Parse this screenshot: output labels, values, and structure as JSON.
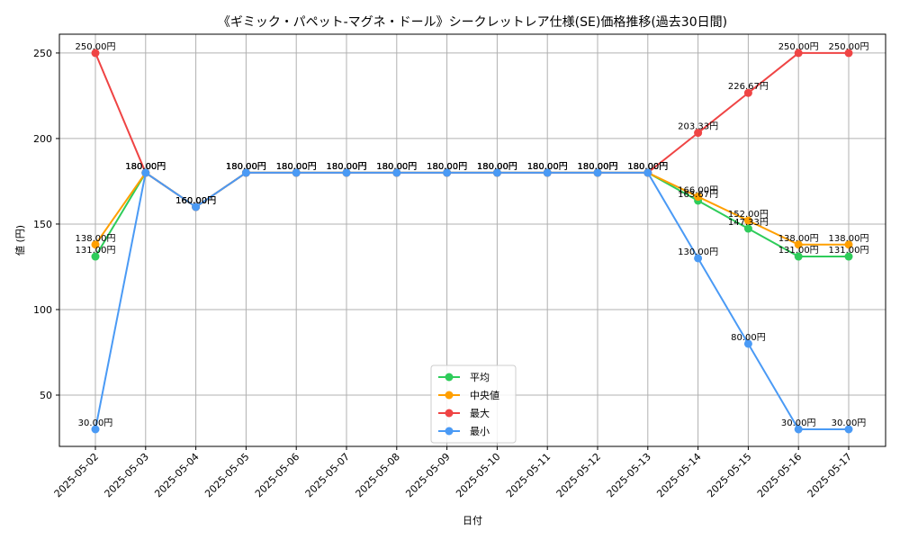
{
  "chart_data": {
    "type": "line",
    "title": "《ギミック・パペット-マグネ・ドール》シークレットレア仕様(SE)価格推移(過去30日間)",
    "xlabel": "日付",
    "ylabel": "値 (円)",
    "ylim": [
      20,
      261
    ],
    "yticks": [
      50,
      100,
      150,
      200,
      250
    ],
    "grid": true,
    "legend_position": "bottom-center",
    "value_suffix": "円",
    "categories": [
      "2025-05-02",
      "2025-05-03",
      "2025-05-04",
      "2025-05-05",
      "2025-05-06",
      "2025-05-07",
      "2025-05-08",
      "2025-05-09",
      "2025-05-10",
      "2025-05-11",
      "2025-05-12",
      "2025-05-13",
      "2025-05-14",
      "2025-05-15",
      "2025-05-16",
      "2025-05-17"
    ],
    "series": [
      {
        "name": "平均",
        "color": "#2ecc5a",
        "values": [
          131.0,
          180.0,
          160.0,
          180.0,
          180.0,
          180.0,
          180.0,
          180.0,
          180.0,
          180.0,
          180.0,
          180.0,
          163.67,
          147.33,
          131.0,
          131.0
        ],
        "labels": [
          "131.00円",
          "180.00円",
          "160.00円",
          "180.00円",
          "180.00円",
          "180.00円",
          "180.00円",
          "180.00円",
          "180.00円",
          "180.00円",
          "180.00円",
          "180.00円",
          "163.67円",
          "147.33円",
          "131.00円",
          "131.00円"
        ]
      },
      {
        "name": "中央値",
        "color": "#ff9f00",
        "values": [
          138.0,
          180.0,
          160.0,
          180.0,
          180.0,
          180.0,
          180.0,
          180.0,
          180.0,
          180.0,
          180.0,
          180.0,
          166.0,
          152.0,
          138.0,
          138.0
        ],
        "labels": [
          "138.00円",
          "180.00円",
          "160.00円",
          "180.00円",
          "180.00円",
          "180.00円",
          "180.00円",
          "180.00円",
          "180.00円",
          "180.00円",
          "180.00円",
          "180.00円",
          "166.00円",
          "152.00円",
          "138.00円",
          "138.00円"
        ]
      },
      {
        "name": "最大",
        "color": "#ef4444",
        "values": [
          250.0,
          180.0,
          160.0,
          180.0,
          180.0,
          180.0,
          180.0,
          180.0,
          180.0,
          180.0,
          180.0,
          180.0,
          203.33,
          226.67,
          250.0,
          250.0
        ],
        "labels": [
          "250.00円",
          "180.00円",
          "160.00円",
          "180.00円",
          "180.00円",
          "180.00円",
          "180.00円",
          "180.00円",
          "180.00円",
          "180.00円",
          "180.00円",
          "180.00円",
          "203.33円",
          "226.67円",
          "250.00円",
          "250.00円"
        ]
      },
      {
        "name": "最小",
        "color": "#4a9af5",
        "values": [
          30.0,
          180.0,
          160.0,
          180.0,
          180.0,
          180.0,
          180.0,
          180.0,
          180.0,
          180.0,
          180.0,
          180.0,
          130.0,
          80.0,
          30.0,
          30.0
        ],
        "labels": [
          "30.00円",
          "180.00円",
          "160.00円",
          "180.00円",
          "180.00円",
          "180.00円",
          "180.00円",
          "180.00円",
          "180.00円",
          "180.00円",
          "180.00円",
          "180.00円",
          "130.00円",
          "80.00円",
          "30.00円",
          "30.00円"
        ]
      }
    ]
  }
}
